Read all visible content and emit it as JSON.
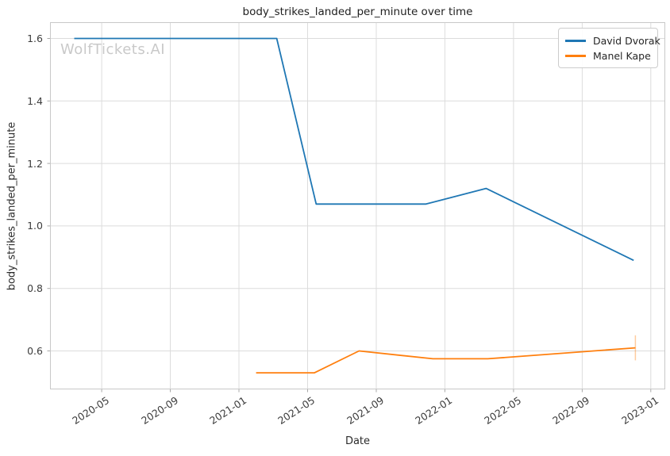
{
  "figure": {
    "watermark": "WolfTickets.AI"
  },
  "chart_data": {
    "type": "line",
    "title": "body_strikes_landed_per_minute over time",
    "xlabel": "Date",
    "ylabel": "body_strikes_landed_per_minute",
    "grid": true,
    "legend_position": "upper right",
    "x_unit": "months since 2020-01",
    "xlim_months": [
      0.99,
      36.84
    ],
    "ylim": [
      0.477,
      1.652
    ],
    "x_ticks": [
      {
        "label": "2020-05",
        "m": 4
      },
      {
        "label": "2020-09",
        "m": 8
      },
      {
        "label": "2021-01",
        "m": 12
      },
      {
        "label": "2021-05",
        "m": 16
      },
      {
        "label": "2021-09",
        "m": 20
      },
      {
        "label": "2022-01",
        "m": 24
      },
      {
        "label": "2022-05",
        "m": 28
      },
      {
        "label": "2022-09",
        "m": 32
      },
      {
        "label": "2023-01",
        "m": 36
      }
    ],
    "y_ticks": [
      "0.6",
      "0.8",
      "1.0",
      "1.2",
      "1.4",
      "1.6"
    ],
    "series": [
      {
        "name": "David Dvorak",
        "color": "#1f77b4",
        "points": [
          {
            "date": "2020-03",
            "m": 2.4,
            "value": 1.6
          },
          {
            "date": "2021-03",
            "m": 14.2,
            "value": 1.6
          },
          {
            "date": "2021-05",
            "m": 16.5,
            "value": 1.07
          },
          {
            "date": "2021-12",
            "m": 22.9,
            "value": 1.07
          },
          {
            "date": "2022-03",
            "m": 26.4,
            "value": 1.12
          },
          {
            "date": "2022-12",
            "m": 35.0,
            "value": 0.89
          }
        ]
      },
      {
        "name": "Manel Kape",
        "color": "#ff7f0e",
        "points": [
          {
            "date": "2021-02",
            "m": 13.0,
            "value": 0.53
          },
          {
            "date": "2021-05",
            "m": 16.4,
            "value": 0.53
          },
          {
            "date": "2021-08",
            "m": 19.0,
            "value": 0.6
          },
          {
            "date": "2021-12",
            "m": 23.3,
            "value": 0.575
          },
          {
            "date": "2022-03",
            "m": 26.5,
            "value": 0.575
          },
          {
            "date": "2022-12",
            "m": 35.1,
            "value": 0.61
          }
        ],
        "end_whisker": {
          "m": 35.1,
          "from": 0.57,
          "to": 0.65
        }
      }
    ],
    "colors": {
      "grid": "#dcdcdc",
      "spine": "#c8c8c8",
      "tick": "#a8a8a8"
    }
  }
}
